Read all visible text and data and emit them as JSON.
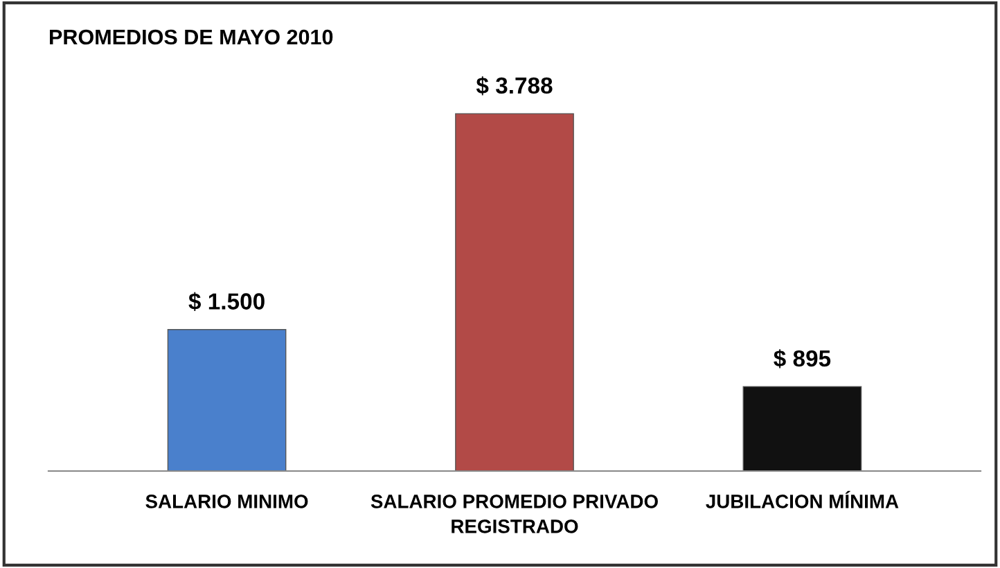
{
  "chart_data": {
    "type": "bar",
    "title": "PROMEDIOS DE MAYO 2010",
    "categories": [
      "SALARIO MINIMO",
      "SALARIO PROMEDIO PRIVADO REGISTRADO",
      "JUBILACION MÍNIMA"
    ],
    "values": [
      1500,
      3788,
      895
    ],
    "colors": [
      "#4a80cc",
      "#b24a47",
      "#111111"
    ],
    "value_labels": [
      "$ 1.500",
      "$ 3.788",
      "$ 895"
    ]
  }
}
